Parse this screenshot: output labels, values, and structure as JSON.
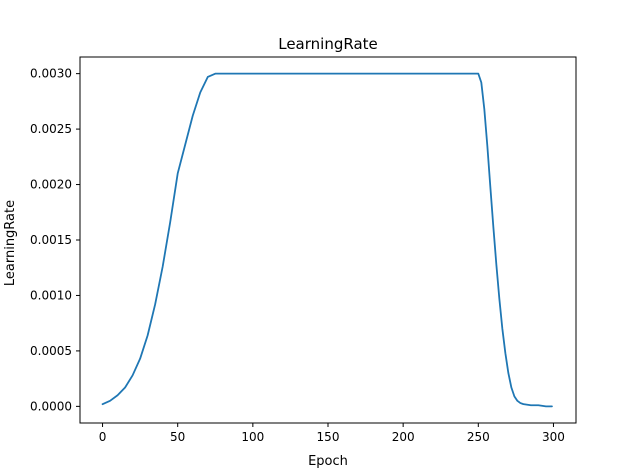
{
  "chart_data": {
    "type": "line",
    "title": "LearningRate",
    "xlabel": "Epoch",
    "ylabel": "LearningRate",
    "xlim": [
      -15,
      315
    ],
    "ylim": [
      -0.00015,
      0.00315
    ],
    "xticks": [
      0,
      50,
      100,
      150,
      200,
      250,
      300
    ],
    "xtick_labels": [
      "0",
      "50",
      "100",
      "150",
      "200",
      "250",
      "300"
    ],
    "yticks": [
      0.0,
      0.0005,
      0.001,
      0.0015,
      0.002,
      0.0025,
      0.003
    ],
    "ytick_labels": [
      "0.0000",
      "0.0005",
      "0.0010",
      "0.0015",
      "0.0020",
      "0.0025",
      "0.0030"
    ],
    "grid": false,
    "legend": "none",
    "series": [
      {
        "color": "#1f77b4",
        "x": [
          0,
          5,
          10,
          15,
          20,
          25,
          30,
          35,
          40,
          45,
          50,
          55,
          60,
          65,
          70,
          75,
          80,
          90,
          100,
          110,
          120,
          130,
          140,
          150,
          160,
          170,
          180,
          190,
          200,
          210,
          220,
          230,
          240,
          245,
          248,
          250,
          252,
          254,
          256,
          258,
          260,
          262,
          264,
          266,
          268,
          270,
          272,
          274,
          276,
          278,
          280,
          285,
          290,
          295,
          299
        ],
        "y": [
          2e-05,
          5e-05,
          0.0001,
          0.00017,
          0.00028,
          0.00043,
          0.00064,
          0.00092,
          0.00126,
          0.00166,
          0.0021,
          0.00236,
          0.00262,
          0.00283,
          0.00297,
          0.003,
          0.003,
          0.003,
          0.003,
          0.003,
          0.003,
          0.003,
          0.003,
          0.003,
          0.003,
          0.003,
          0.003,
          0.003,
          0.003,
          0.003,
          0.003,
          0.003,
          0.003,
          0.003,
          0.003,
          0.003,
          0.00292,
          0.00268,
          0.00235,
          0.00198,
          0.00162,
          0.00128,
          0.00097,
          0.0007,
          0.00048,
          0.0003,
          0.00017,
          9e-05,
          5e-05,
          3e-05,
          2e-05,
          1e-05,
          1e-05,
          0.0,
          0.0
        ]
      }
    ]
  }
}
